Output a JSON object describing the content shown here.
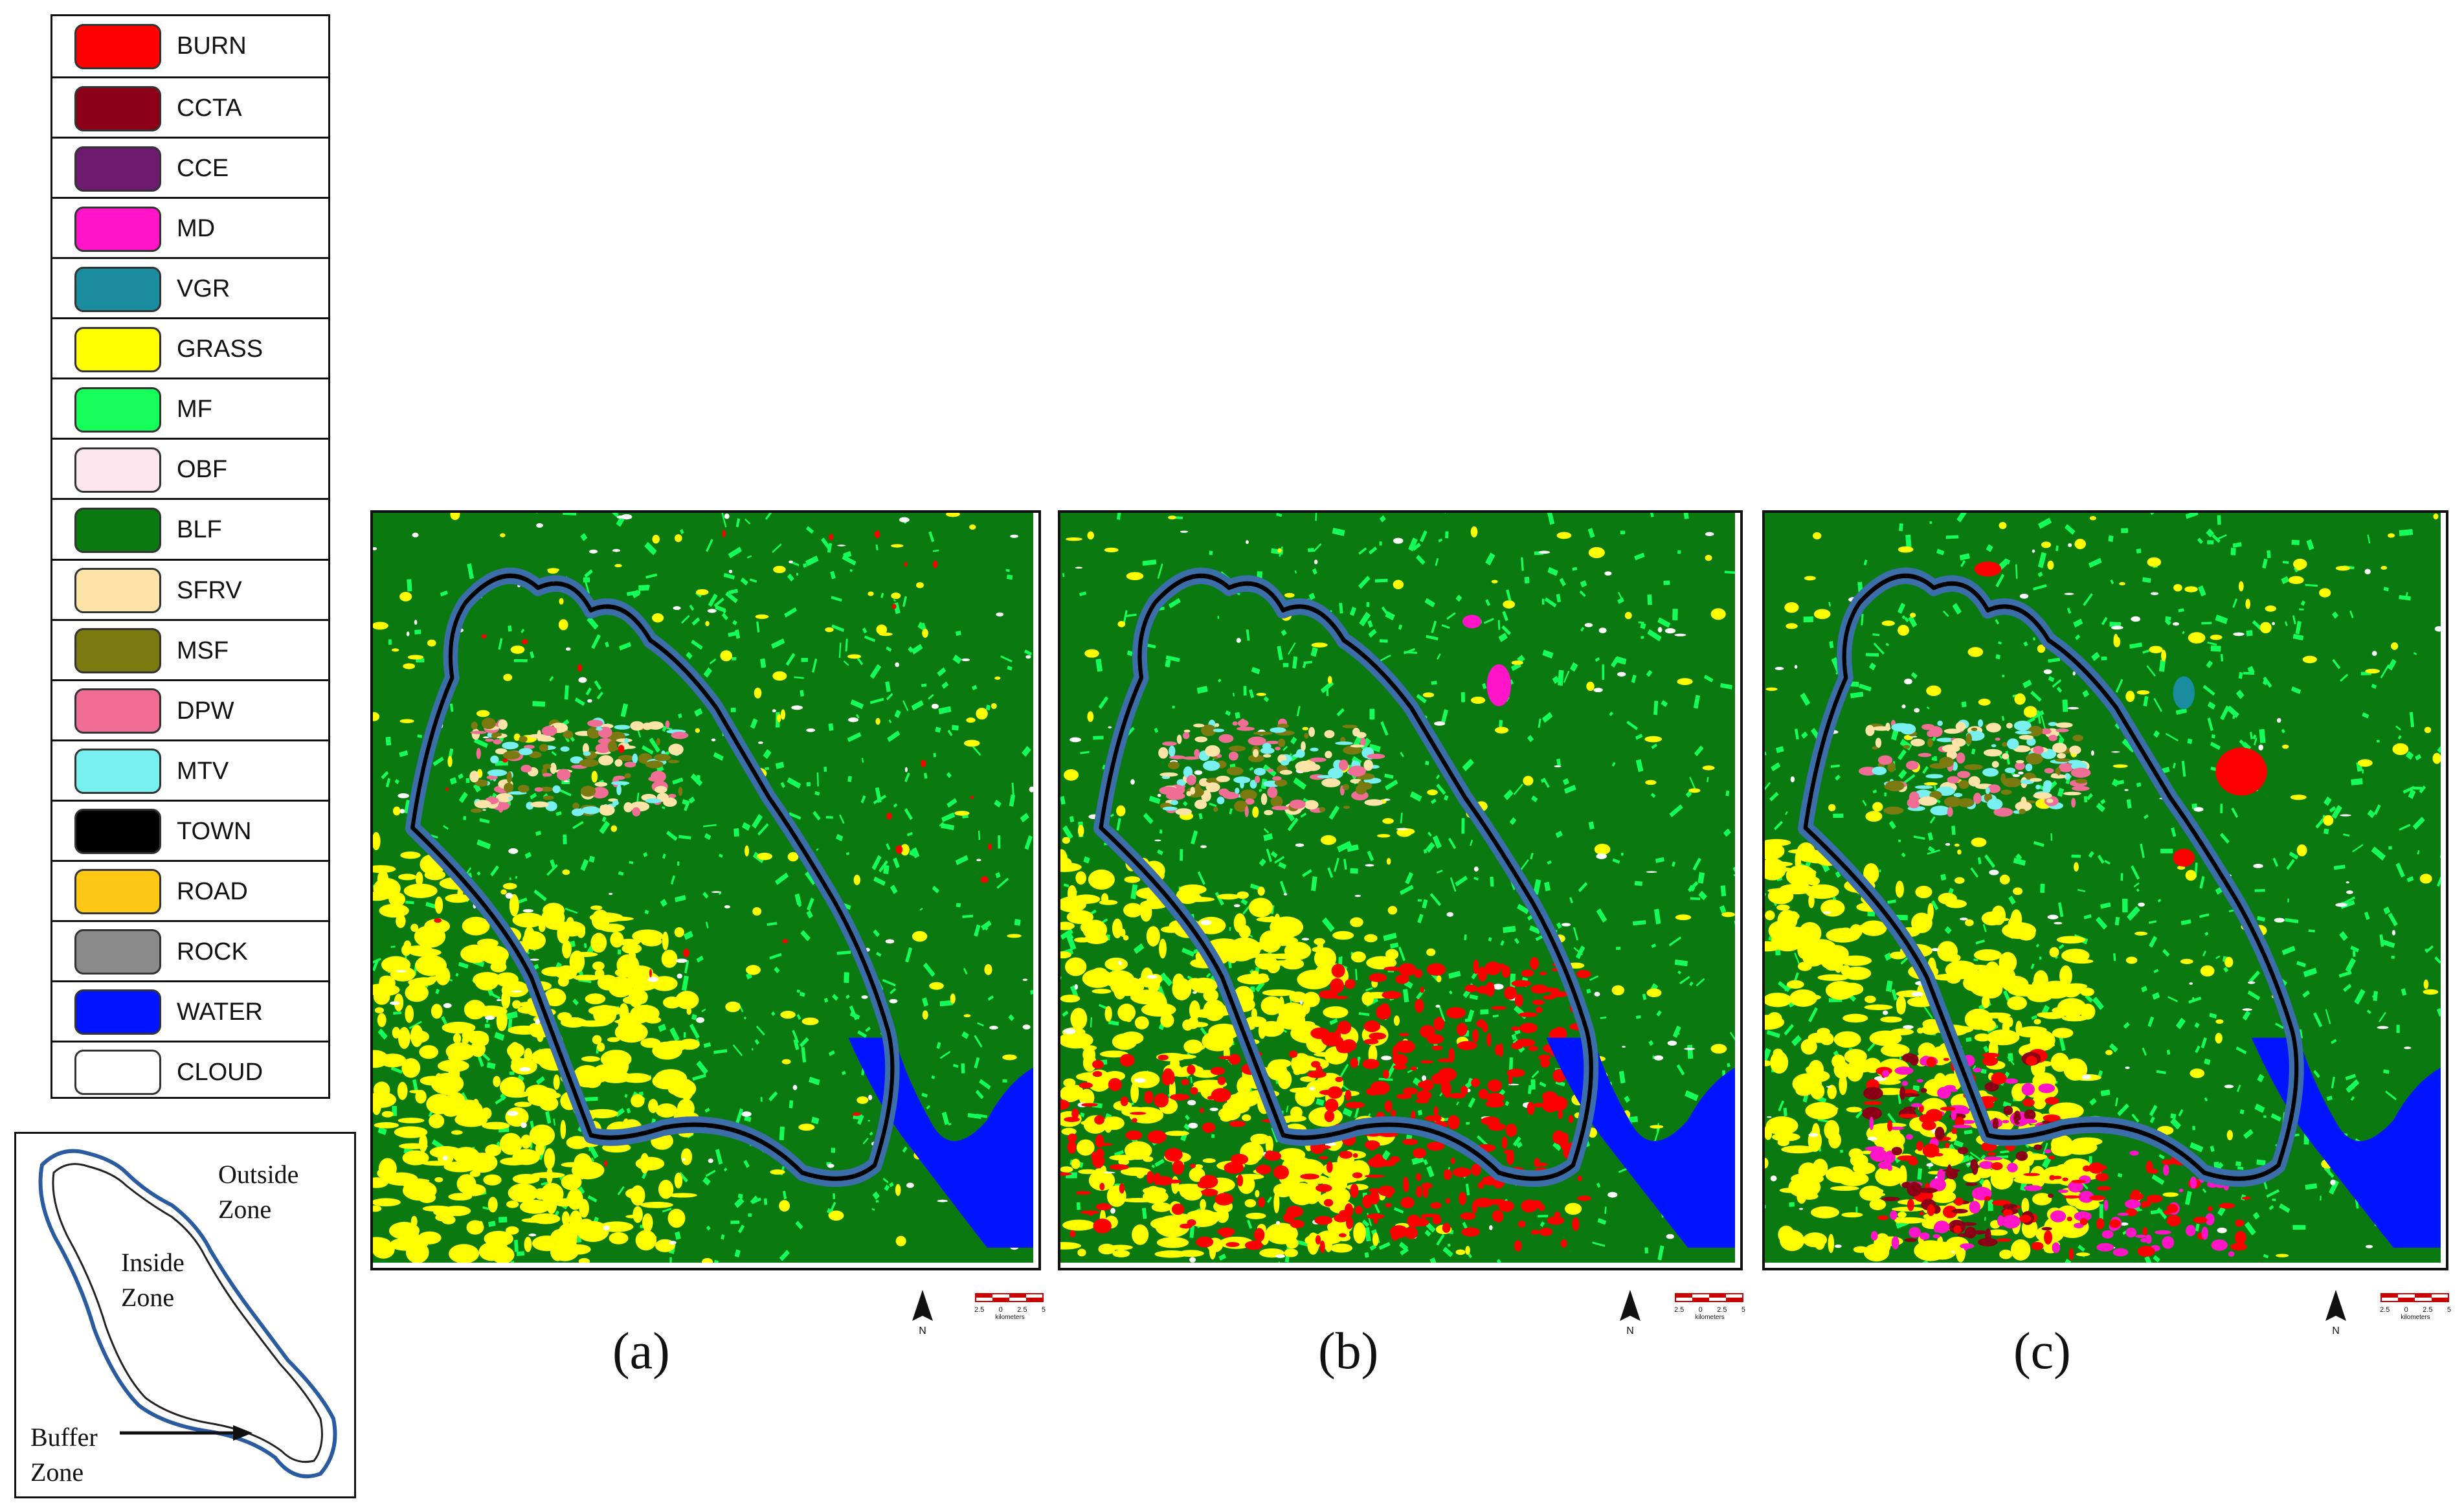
{
  "legend": {
    "items": [
      {
        "label": "BURN",
        "color": "#ff0000"
      },
      {
        "label": "CCTA",
        "color": "#8b0016"
      },
      {
        "label": "CCE",
        "color": "#6e1a6e"
      },
      {
        "label": "MD",
        "color": "#ff14c8"
      },
      {
        "label": "VGR",
        "color": "#1a8ca0"
      },
      {
        "label": "GRASS",
        "color": "#ffff00"
      },
      {
        "label": "MF",
        "color": "#14ff5a"
      },
      {
        "label": "OBF",
        "color": "#fde6ee"
      },
      {
        "label": "BLF",
        "color": "#0a7a10"
      },
      {
        "label": "SFRV",
        "color": "#fce3a8"
      },
      {
        "label": "MSF",
        "color": "#7a7a10"
      },
      {
        "label": "DPW",
        "color": "#f06e96"
      },
      {
        "label": "MTV",
        "color": "#78f0f0"
      },
      {
        "label": "TOWN",
        "color": "#000000"
      },
      {
        "label": "ROAD",
        "color": "#ffc814"
      },
      {
        "label": "ROCK",
        "color": "#8a8a8a"
      },
      {
        "label": "WATER",
        "color": "#0014ff"
      },
      {
        "label": "CLOUD",
        "color": "#ffffff"
      }
    ]
  },
  "inset": {
    "outside_label": "Outside\nZone",
    "inside_label": "Inside\nZone",
    "buffer_label": "Buffer\nZone"
  },
  "panels": [
    {
      "caption": "(a)",
      "north_label": "N",
      "scale_ticks": [
        "2.5",
        "0",
        "2.5",
        "5"
      ],
      "scale_unit": "kilometers"
    },
    {
      "caption": "(b)",
      "north_label": "N",
      "scale_ticks": [
        "2.5",
        "0",
        "2.5",
        "5"
      ],
      "scale_unit": "kilometers"
    },
    {
      "caption": "(c)",
      "north_label": "N",
      "scale_ticks": [
        "2.5",
        "0",
        "2.5",
        "5"
      ],
      "scale_unit": "kilometers"
    }
  ],
  "colors": {
    "buffer_blue": "#3c6eaa",
    "boundary_black": "#000000",
    "forest_green": "#0a7a10",
    "light_green": "#14ff5a"
  }
}
